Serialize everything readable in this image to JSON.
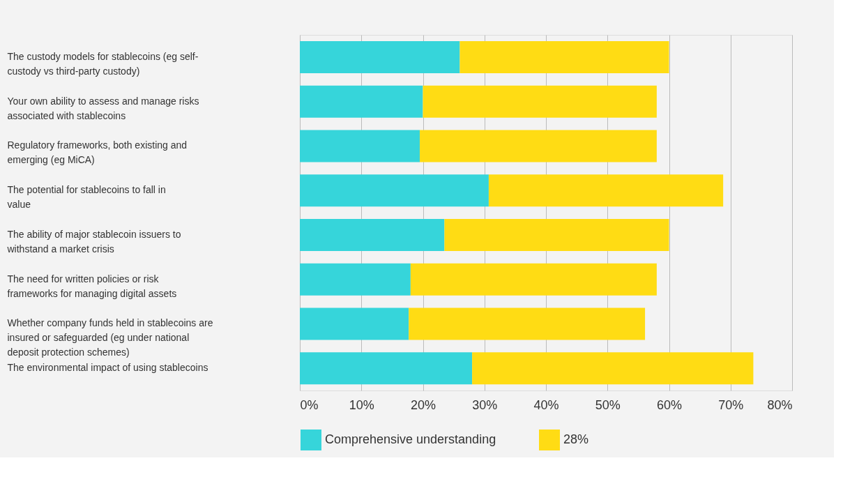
{
  "chart_data": {
    "type": "bar",
    "orientation": "horizontal",
    "stacked": true,
    "categories": [
      "The custody models for stablecoins (eg self-custody vs third-party custody)",
      "Your own ability to assess and manage risks associated with stablecoins",
      "Regulatory frameworks, both existing and emerging (eg MiCA)",
      "The potential for stablecoins to fall in value",
      "The ability of major stablecoin issuers to withstand a market crisis",
      "The need for written policies or risk frameworks for managing digital assets",
      "Whether company funds held in stablecoins are insured or safeguarded (eg under national deposit protection schemes)",
      "The environmental impact of using stablecoins"
    ],
    "series": [
      {
        "name": "Comprehensive understanding",
        "color": "#36d5da",
        "values": [
          26,
          20,
          19.5,
          30.7,
          23.5,
          18,
          17.7,
          28
        ]
      },
      {
        "name": "28%",
        "color": "#ffdc14",
        "values": [
          34,
          38,
          38.5,
          38.1,
          36.5,
          40,
          38.4,
          45.7
        ]
      }
    ],
    "xlim": [
      0,
      80
    ],
    "xticks": [
      {
        "value": 0,
        "label": "0%"
      },
      {
        "value": 10,
        "label": "10%"
      },
      {
        "value": 20,
        "label": "20%"
      },
      {
        "value": 30,
        "label": "30%"
      },
      {
        "value": 40,
        "label": "40%"
      },
      {
        "value": 50,
        "label": "50%"
      },
      {
        "value": 60,
        "label": "60%"
      },
      {
        "value": 70,
        "label": "70%"
      },
      {
        "value": 80,
        "label": "80%"
      }
    ],
    "grid": "x",
    "legend": "bottom"
  }
}
